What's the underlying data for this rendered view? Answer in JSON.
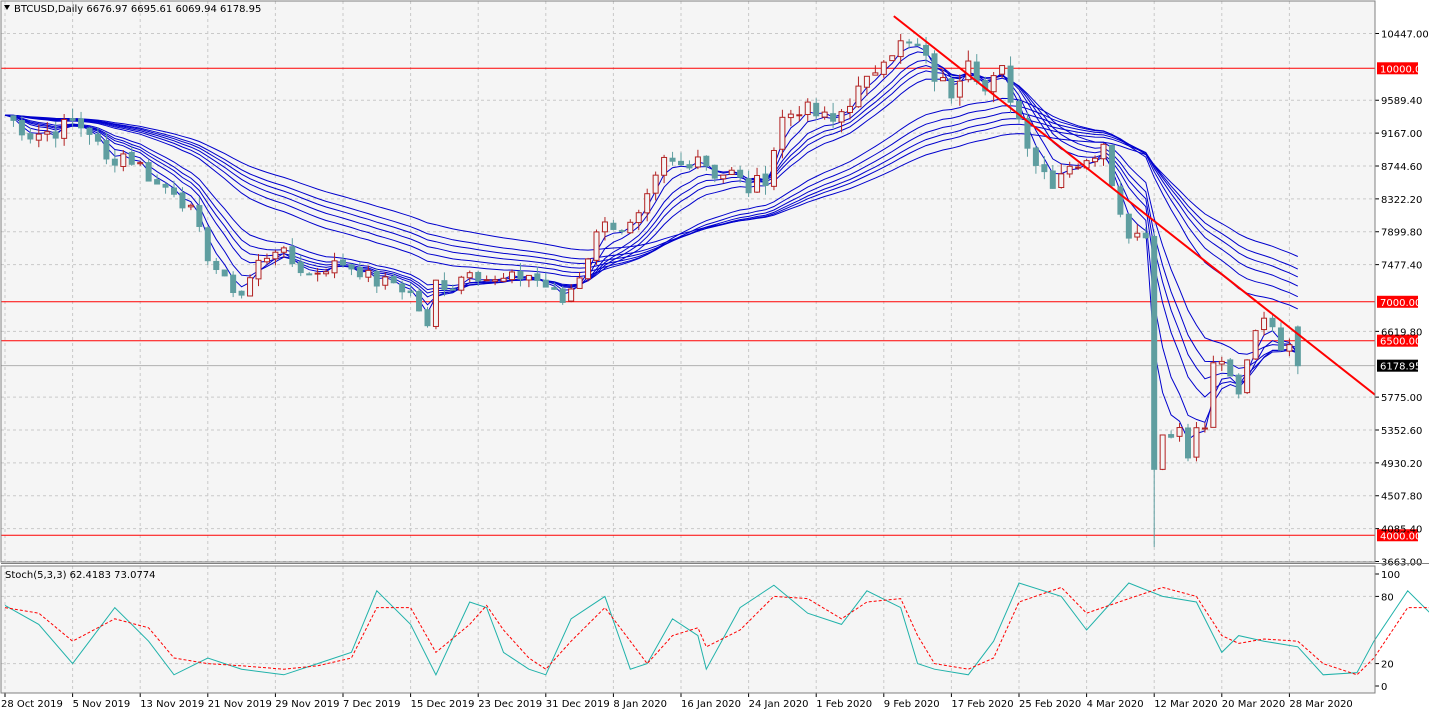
{
  "main_panel": {
    "header": "BTCUSD,Daily  6676.97 6695.61 6069.94 6178.95"
  },
  "stoch_panel": {
    "header": "Stoch(5,3,3) 62.4183 73.0774"
  },
  "colors": {
    "background": "#f5f5f5",
    "grid": "#c9c9c9",
    "bull_candle": "#b22222",
    "bear_candle": "#5f9ea0",
    "ma_ribbon": "#0000cd",
    "level_line": "#ff0000",
    "trendline": "#ff0000",
    "stoch_main": "#20b2aa",
    "stoch_signal": "#ff0000",
    "price_tag_bg": "#ff0000",
    "current_price_bg": "#000000"
  },
  "chart_data": [
    {
      "type": "candlestick",
      "symbol": "BTCUSD",
      "timeframe": "Daily",
      "last_bar": {
        "open": 6676.97,
        "high": 6695.61,
        "low": 6069.94,
        "close": 6178.95
      },
      "y_axis_ticks": [
        "10447.00",
        "9589.40",
        "9167.00",
        "8744.60",
        "8322.20",
        "7899.80",
        "7477.40",
        "6619.80",
        "5775.00",
        "5352.60",
        "4930.20",
        "4507.80",
        "4085.40",
        "3663.00"
      ],
      "y_range": [
        3663,
        10447
      ],
      "x_axis_ticks": [
        "28 Oct 2019",
        "5 Nov 2019",
        "13 Nov 2019",
        "21 Nov 2019",
        "29 Nov 2019",
        "7 Dec 2019",
        "15 Dec 2019",
        "23 Dec 2019",
        "31 Dec 2019",
        "8 Jan 2020",
        "16 Jan 2020",
        "24 Jan 2020",
        "1 Feb 2020",
        "9 Feb 2020",
        "17 Feb 2020",
        "25 Feb 2020",
        "4 Mar 2020",
        "12 Mar 2020",
        "20 Mar 2020",
        "28 Mar 2020"
      ],
      "horizontal_levels": [
        "10000.00",
        "7000.00",
        "6500.00",
        "4000.00"
      ],
      "current_price": "6178.95",
      "trendline": {
        "from": {
          "date": "9 Feb 2020",
          "price": 10670
        },
        "to": {
          "date": "30 Mar 2020",
          "price": 6500
        }
      },
      "close_path": [
        [
          "28 Oct 2019",
          9400
        ],
        [
          "31 Oct 2019",
          9150
        ],
        [
          "3 Nov 2019",
          9200
        ],
        [
          "5 Nov 2019",
          9310
        ],
        [
          "7 Nov 2019",
          9200
        ],
        [
          "9 Nov 2019",
          8800
        ],
        [
          "11 Nov 2019",
          8900
        ],
        [
          "13 Nov 2019",
          8750
        ],
        [
          "15 Nov 2019",
          8500
        ],
        [
          "17 Nov 2019",
          8450
        ],
        [
          "19 Nov 2019",
          8150
        ],
        [
          "21 Nov 2019",
          7600
        ],
        [
          "23 Nov 2019",
          7250
        ],
        [
          "25 Nov 2019",
          7100
        ],
        [
          "27 Nov 2019",
          7500
        ],
        [
          "29 Nov 2019",
          7700
        ],
        [
          "1 Dec 2019",
          7500
        ],
        [
          "3 Dec 2019",
          7350
        ],
        [
          "5 Dec 2019",
          7450
        ],
        [
          "7 Dec 2019",
          7500
        ],
        [
          "9 Dec 2019",
          7400
        ],
        [
          "11 Dec 2019",
          7250
        ],
        [
          "13 Dec 2019",
          7250
        ],
        [
          "15 Dec 2019",
          7100
        ],
        [
          "16 Dec 2019",
          6900
        ],
        [
          "17 Dec 2019",
          6650
        ],
        [
          "18 Dec 2019",
          7250
        ],
        [
          "20 Dec 2019",
          7200
        ],
        [
          "22 Dec 2019",
          7450
        ],
        [
          "23 Dec 2019",
          7350
        ],
        [
          "25 Dec 2019",
          7250
        ],
        [
          "27 Dec 2019",
          7300
        ],
        [
          "29 Dec 2019",
          7350
        ],
        [
          "31 Dec 2019",
          7200
        ],
        [
          "2 Jan 2020",
          7000
        ],
        [
          "4 Jan 2020",
          7350
        ],
        [
          "7 Jan 2020",
          8100
        ],
        [
          "9 Jan 2020",
          7850
        ],
        [
          "11 Jan 2020",
          8050
        ],
        [
          "14 Jan 2020",
          8800
        ],
        [
          "16 Jan 2020",
          8750
        ],
        [
          "18 Jan 2020",
          8900
        ],
        [
          "20 Jan 2020",
          8650
        ],
        [
          "22 Jan 2020",
          8650
        ],
        [
          "24 Jan 2020",
          8450
        ],
        [
          "26 Jan 2020",
          8600
        ],
        [
          "28 Jan 2020",
          9350
        ],
        [
          "30 Jan 2020",
          9500
        ],
        [
          "1 Feb 2020",
          9400
        ],
        [
          "3 Feb 2020",
          9300
        ],
        [
          "5 Feb 2020",
          9600
        ],
        [
          "7 Feb 2020",
          9800
        ],
        [
          "9 Feb 2020",
          10200
        ],
        [
          "11 Feb 2020",
          10300
        ],
        [
          "13 Feb 2020",
          10250
        ],
        [
          "15 Feb 2020",
          9900
        ],
        [
          "17 Feb 2020",
          9700
        ],
        [
          "19 Feb 2020",
          10200
        ],
        [
          "21 Feb 2020",
          9700
        ],
        [
          "23 Feb 2020",
          9950
        ],
        [
          "25 Feb 2020",
          9350
        ],
        [
          "27 Feb 2020",
          8800
        ],
        [
          "29 Feb 2020",
          8550
        ],
        [
          "2 Mar 2020",
          8800
        ],
        [
          "4 Mar 2020",
          8750
        ],
        [
          "6 Mar 2020",
          9100
        ],
        [
          "8 Mar 2020",
          8100
        ],
        [
          "9 Mar 2020",
          7900
        ],
        [
          "11 Mar 2020",
          7900
        ],
        [
          "12 Mar 2020",
          4850
        ],
        [
          "13 Mar 2020",
          5300
        ],
        [
          "15 Mar 2020",
          5350
        ],
        [
          "16 Mar 2020",
          5000
        ],
        [
          "17 Mar 2020",
          5350
        ],
        [
          "18 Mar 2020",
          5400
        ],
        [
          "19 Mar 2020",
          6150
        ],
        [
          "20 Mar 2020",
          6200
        ],
        [
          "22 Mar 2020",
          5850
        ],
        [
          "24 Mar 2020",
          6700
        ],
        [
          "26 Mar 2020",
          6750
        ],
        [
          "27 Mar 2020",
          6450
        ],
        [
          "28 Mar 2020",
          6500
        ],
        [
          "29 Mar 2020",
          6178.95
        ]
      ],
      "ribbon_ma_periods": [
        3,
        5,
        8,
        10,
        12,
        15,
        30,
        35,
        40,
        45,
        50,
        60
      ]
    },
    {
      "type": "line",
      "indicator": "Stoch(5,3,3)",
      "values": {
        "main": 62.4183,
        "signal": 73.0774
      },
      "y_axis_ticks": [
        "100",
        "80",
        "20",
        "0"
      ],
      "y_range": [
        0,
        100
      ],
      "levels": [
        80,
        20
      ],
      "series": [
        {
          "values": [
            [
              0,
              72
            ],
            [
              4,
              55
            ],
            [
              8,
              20
            ],
            [
              13,
              70
            ],
            [
              17,
              40
            ],
            [
              20,
              10
            ],
            [
              24,
              25
            ],
            [
              28,
              15
            ],
            [
              33,
              10
            ],
            [
              37,
              20
            ],
            [
              41,
              30
            ],
            [
              44,
              85
            ],
            [
              48,
              55
            ],
            [
              51,
              10
            ],
            [
              55,
              75
            ],
            [
              57,
              70
            ],
            [
              59,
              30
            ],
            [
              62,
              15
            ],
            [
              64,
              10
            ],
            [
              67,
              60
            ],
            [
              71,
              80
            ],
            [
              74,
              15
            ],
            [
              76,
              20
            ],
            [
              79,
              60
            ],
            [
              82,
              45
            ],
            [
              83,
              15
            ],
            [
              87,
              70
            ],
            [
              91,
              90
            ],
            [
              95,
              65
            ],
            [
              99,
              55
            ],
            [
              102,
              85
            ],
            [
              106,
              70
            ],
            [
              108,
              20
            ],
            [
              110,
              15
            ],
            [
              114,
              10
            ],
            [
              117,
              40
            ],
            [
              120,
              92
            ],
            [
              125,
              80
            ],
            [
              128,
              50
            ],
            [
              133,
              92
            ],
            [
              137,
              80
            ],
            [
              141,
              75
            ],
            [
              144,
              30
            ],
            [
              146,
              45
            ],
            [
              149,
              40
            ],
            [
              153,
              35
            ],
            [
              156,
              10
            ],
            [
              160,
              12
            ],
            [
              162,
              40
            ],
            [
              166,
              85
            ],
            [
              170,
              55
            ],
            [
              174,
              10
            ],
            [
              177,
              10
            ],
            [
              181,
              30
            ],
            [
              184,
              50
            ],
            [
              187,
              80
            ],
            [
              191,
              80
            ],
            [
              194,
              60
            ],
            [
              196,
              70
            ],
            [
              198,
              62.4
            ]
          ]
        },
        {
          "values": [
            [
              0,
              70
            ],
            [
              4,
              65
            ],
            [
              8,
              40
            ],
            [
              13,
              60
            ],
            [
              17,
              52
            ],
            [
              20,
              25
            ],
            [
              24,
              20
            ],
            [
              28,
              18
            ],
            [
              33,
              15
            ],
            [
              37,
              18
            ],
            [
              41,
              25
            ],
            [
              44,
              70
            ],
            [
              48,
              70
            ],
            [
              51,
              30
            ],
            [
              55,
              55
            ],
            [
              57,
              72
            ],
            [
              59,
              50
            ],
            [
              62,
              25
            ],
            [
              64,
              15
            ],
            [
              67,
              40
            ],
            [
              71,
              70
            ],
            [
              74,
              40
            ],
            [
              76,
              20
            ],
            [
              79,
              45
            ],
            [
              82,
              52
            ],
            [
              83,
              35
            ],
            [
              87,
              50
            ],
            [
              91,
              80
            ],
            [
              95,
              78
            ],
            [
              99,
              60
            ],
            [
              102,
              75
            ],
            [
              106,
              78
            ],
            [
              108,
              45
            ],
            [
              110,
              20
            ],
            [
              114,
              15
            ],
            [
              117,
              25
            ],
            [
              120,
              75
            ],
            [
              125,
              88
            ],
            [
              128,
              65
            ],
            [
              133,
              78
            ],
            [
              137,
              88
            ],
            [
              141,
              80
            ],
            [
              144,
              45
            ],
            [
              146,
              38
            ],
            [
              149,
              42
            ],
            [
              153,
              40
            ],
            [
              156,
              20
            ],
            [
              160,
              10
            ],
            [
              162,
              25
            ],
            [
              166,
              70
            ],
            [
              170,
              70
            ],
            [
              174,
              30
            ],
            [
              177,
              15
            ],
            [
              181,
              20
            ],
            [
              184,
              40
            ],
            [
              187,
              70
            ],
            [
              191,
              80
            ],
            [
              194,
              70
            ],
            [
              196,
              68
            ],
            [
              198,
              73.1
            ]
          ]
        }
      ]
    }
  ]
}
